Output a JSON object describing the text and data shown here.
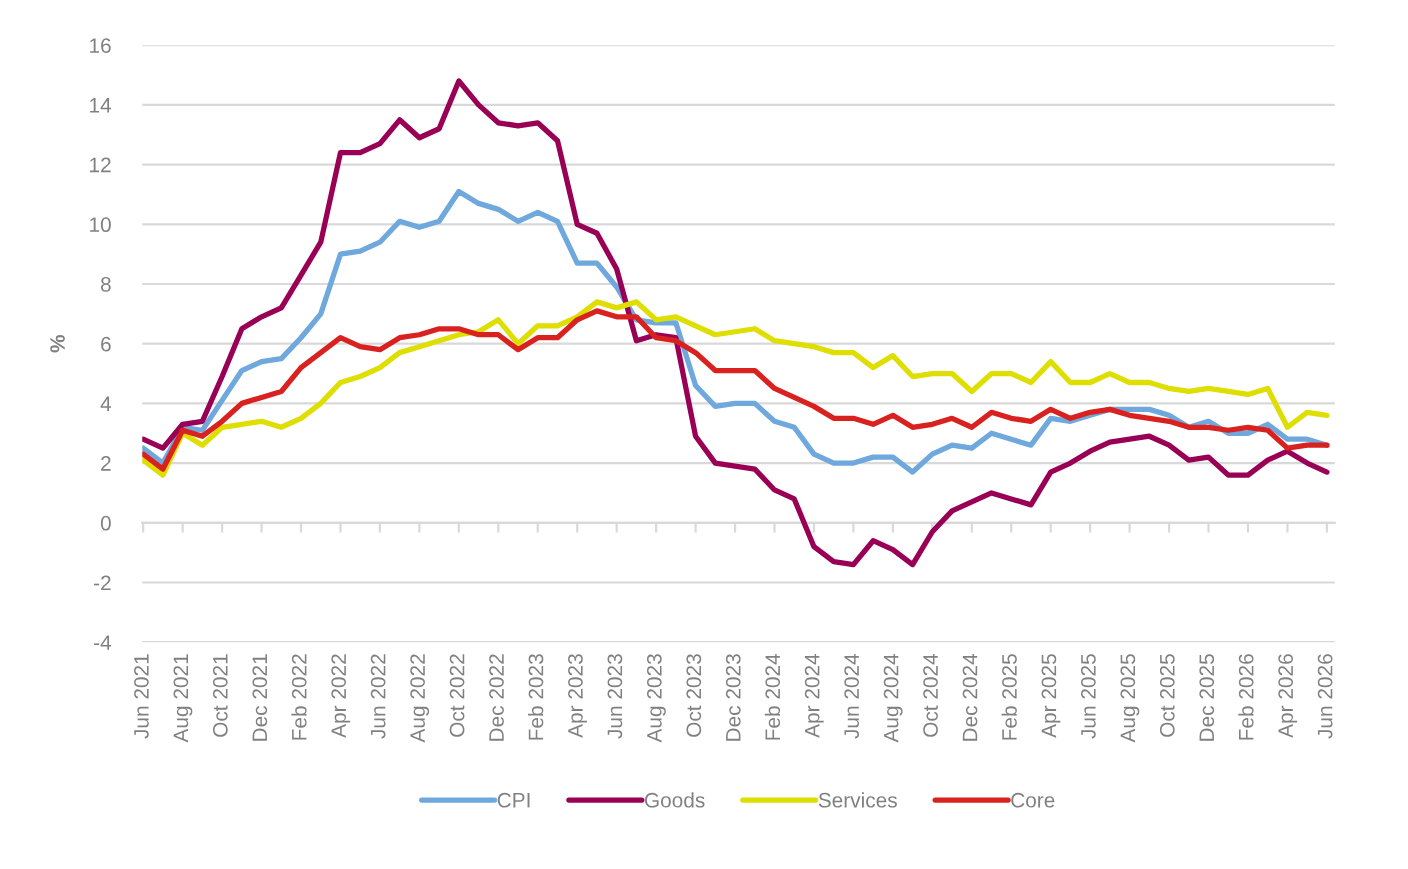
{
  "chart_data": {
    "type": "line",
    "ylabel": "%",
    "categories": [
      "Jun 2021",
      null,
      "Aug 2021",
      null,
      "Oct 2021",
      null,
      "Dec 2021",
      null,
      "Feb 2022",
      null,
      "Apr 2022",
      null,
      "Jun 2022",
      null,
      "Aug 2022",
      null,
      "Oct 2022",
      null,
      "Dec 2022",
      null,
      "Feb 2023",
      null,
      "Apr 2023",
      null,
      "Jun 2023",
      null,
      "Aug 2023",
      null,
      "Oct 2023",
      null,
      "Dec 2023",
      null,
      "Feb 2024",
      null,
      "Apr 2024",
      null,
      "Jun 2024",
      null,
      "Aug 2024",
      null,
      "Oct 2024",
      null,
      "Dec 2024",
      null,
      "Feb 2025",
      null,
      "Apr 2025",
      null,
      "Jun 2025",
      null,
      "Aug 2025",
      null,
      "Oct 2025",
      null,
      "Dec 2025",
      null,
      "Feb 2026",
      null,
      "Apr 2026",
      null,
      "Jun 2026"
    ],
    "series": [
      {
        "name": "CPI",
        "color": "#6fa8dc",
        "values": [
          2.5,
          2.0,
          3.2,
          3.1,
          4.1,
          5.1,
          5.4,
          5.5,
          6.2,
          7.0,
          9.0,
          9.1,
          9.4,
          10.1,
          9.9,
          10.1,
          11.1,
          10.7,
          10.5,
          10.1,
          10.4,
          10.1,
          8.7,
          8.7,
          7.9,
          6.8,
          6.7,
          6.7,
          4.6,
          3.9,
          4.0,
          4.0,
          3.4,
          3.2,
          2.3,
          2.0,
          2.0,
          2.2,
          2.2,
          1.7,
          2.3,
          2.6,
          2.5,
          3.0,
          2.8,
          2.6,
          3.5,
          3.4,
          3.6,
          3.8,
          3.8,
          3.8,
          3.6,
          3.2,
          3.4,
          3.0,
          3.0,
          3.3,
          2.8,
          2.8,
          2.6
        ]
      },
      {
        "name": "Goods",
        "color": "#990055",
        "values": [
          2.8,
          2.5,
          3.3,
          3.4,
          4.9,
          6.5,
          6.9,
          7.2,
          8.3,
          9.4,
          12.4,
          12.4,
          12.7,
          13.5,
          12.9,
          13.2,
          14.8,
          14.0,
          13.4,
          13.3,
          13.4,
          12.8,
          10.0,
          9.7,
          8.5,
          6.1,
          6.3,
          6.2,
          2.9,
          2.0,
          1.9,
          1.8,
          1.1,
          0.8,
          -0.8,
          -1.3,
          -1.4,
          -0.6,
          -0.9,
          -1.4,
          -0.3,
          0.4,
          0.7,
          1.0,
          0.8,
          0.6,
          1.7,
          2.0,
          2.4,
          2.7,
          2.8,
          2.9,
          2.6,
          2.1,
          2.2,
          1.6,
          1.6,
          2.1,
          2.4,
          2.0,
          1.7
        ]
      },
      {
        "name": "Services",
        "color": "#dede00",
        "values": [
          2.1,
          1.6,
          3.0,
          2.6,
          3.2,
          3.3,
          3.4,
          3.2,
          3.5,
          4.0,
          4.7,
          4.9,
          5.2,
          5.7,
          5.9,
          6.1,
          6.3,
          6.4,
          6.8,
          6.0,
          6.6,
          6.6,
          6.9,
          7.4,
          7.2,
          7.4,
          6.8,
          6.9,
          6.6,
          6.3,
          6.4,
          6.5,
          6.1,
          6.0,
          5.9,
          5.7,
          5.7,
          5.2,
          5.6,
          4.9,
          5.0,
          5.0,
          4.4,
          5.0,
          5.0,
          4.7,
          5.4,
          4.7,
          4.7,
          5.0,
          4.7,
          4.7,
          4.5,
          4.4,
          4.5,
          4.4,
          4.3,
          4.5,
          3.2,
          3.7,
          3.6
        ]
      },
      {
        "name": "Core",
        "color": "#d9221f",
        "values": [
          2.3,
          1.8,
          3.1,
          2.9,
          3.4,
          4.0,
          4.2,
          4.4,
          5.2,
          5.7,
          6.2,
          5.9,
          5.8,
          6.2,
          6.3,
          6.5,
          6.5,
          6.3,
          6.3,
          5.8,
          6.2,
          6.2,
          6.8,
          7.1,
          6.9,
          6.9,
          6.2,
          6.1,
          5.7,
          5.1,
          5.1,
          5.1,
          4.5,
          4.2,
          3.9,
          3.5,
          3.5,
          3.3,
          3.6,
          3.2,
          3.3,
          3.5,
          3.2,
          3.7,
          3.5,
          3.4,
          3.8,
          3.5,
          3.7,
          3.8,
          3.6,
          3.5,
          3.4,
          3.2,
          3.2,
          3.1,
          3.2,
          3.1,
          2.5,
          2.6,
          2.6
        ]
      }
    ],
    "ylim": [
      -4,
      16
    ],
    "yticks": [
      -4,
      -2,
      0,
      2,
      4,
      6,
      8,
      10,
      12,
      14,
      16
    ],
    "grid": "y",
    "legend": "bottom",
    "marker": "none",
    "line_style": "solid"
  }
}
